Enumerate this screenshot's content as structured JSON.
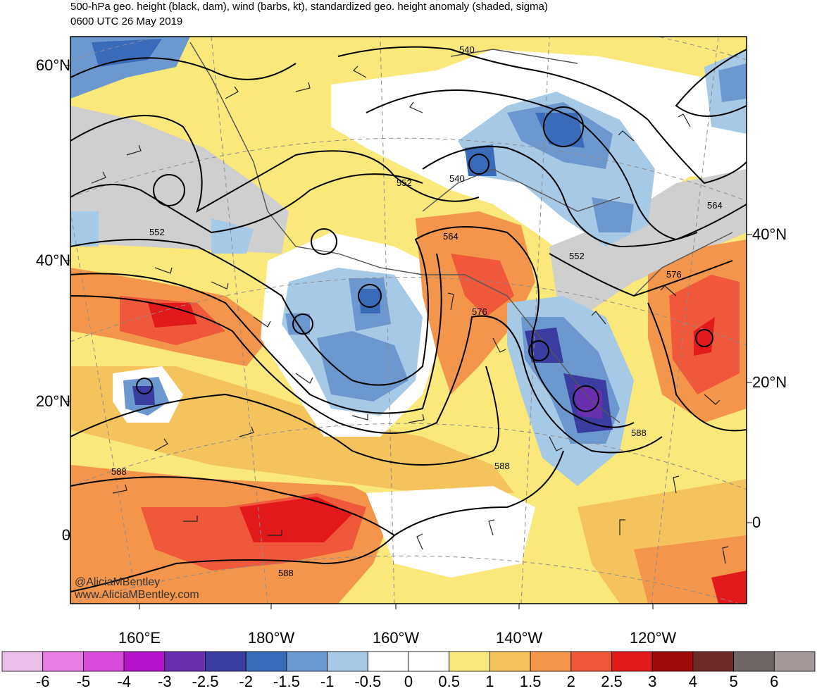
{
  "header": {
    "line1": "500-hPa geo. height (black, dam), wind (barbs, kt), standardized geo. height anomaly (shaded, sigma)",
    "line2": "0600 UTC 26 May 2019"
  },
  "axes": {
    "left_lat_labels": [
      "60°N",
      "40°N",
      "20°N",
      "0"
    ],
    "right_lat_labels": [
      "40°N",
      "20°N",
      "0"
    ],
    "bottom_lon_labels": [
      "160°E",
      "180°W",
      "160°W",
      "140°W",
      "120°W"
    ]
  },
  "contour_labels": [
    "540",
    "540",
    "552",
    "552",
    "552",
    "564",
    "564",
    "576",
    "576",
    "588",
    "588",
    "588",
    "588"
  ],
  "credit": {
    "line1": "@AliciaMBentley",
    "line2": "www.AliciaMBentley.com"
  },
  "colorbar": {
    "labels": [
      "-6",
      "-5",
      "-4",
      "-3",
      "-2.5",
      "-2",
      "-1.5",
      "-1",
      "-0.5",
      "0",
      "0.5",
      "1",
      "1.5",
      "2",
      "2.5",
      "3",
      "4",
      "5",
      "6"
    ],
    "colors": [
      "#ebbde9",
      "#e67ee3",
      "#d84ad8",
      "#b514cc",
      "#6a2fae",
      "#3b3c9f",
      "#3a6bb8",
      "#6b98cf",
      "#a6c9e6",
      "#ffffff",
      "#ffffff",
      "#fbe87a",
      "#f5c35c",
      "#f3954a",
      "#f0583b",
      "#e31a1c",
      "#9e0a0a",
      "#6d2a28",
      "#6e6566",
      "#a49999"
    ]
  }
}
